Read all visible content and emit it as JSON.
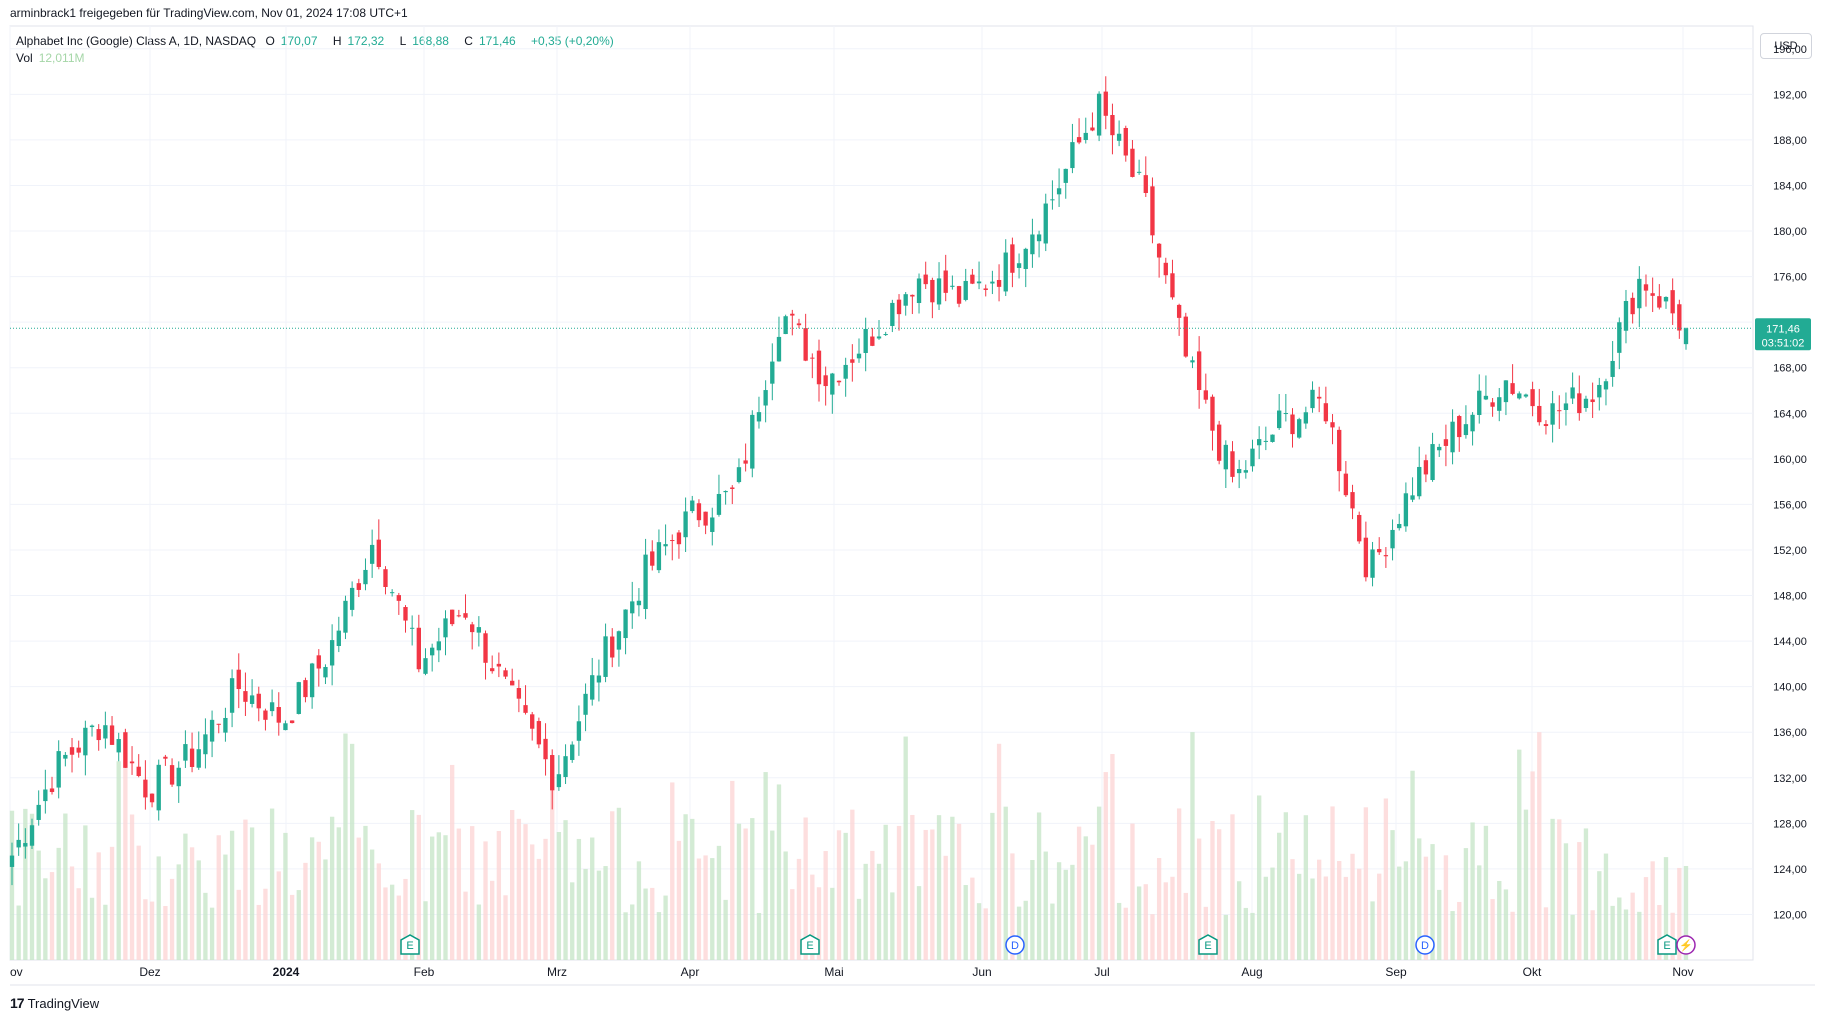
{
  "header": {
    "publisher_line": "arminbrack1 freigegeben für TradingView.com, Nov 01, 2024 17:08 UTC+1"
  },
  "legend": {
    "symbol": "Alphabet Inc (Google) Class A, 1D, NASDAQ",
    "o_label": "O",
    "o_value": "170,07",
    "h_label": "H",
    "h_value": "172,32",
    "l_label": "L",
    "l_value": "168,88",
    "c_label": "C",
    "c_value": "171,46",
    "change": "+0,35 (+0,20%)",
    "vol_label": "Vol",
    "vol_value": "12,011M"
  },
  "currency_button": "USD",
  "price_tag": {
    "price": "171,46",
    "countdown": "03:51:02"
  },
  "footer": {
    "brand": "TradingView"
  },
  "colors": {
    "up": "#22ab94",
    "down": "#f23645",
    "up_vol": "#c8e6c9",
    "down_vol": "#fcd6d6",
    "grid": "#f0f3fa",
    "axis_text": "#131722"
  },
  "chart_data": {
    "type": "candlestick",
    "ylim": [
      116,
      198
    ],
    "y_ticks": [
      "196,00",
      "192,00",
      "188,00",
      "184,00",
      "180,00",
      "176,00",
      "172,00",
      "168,00",
      "164,00",
      "160,00",
      "156,00",
      "152,00",
      "148,00",
      "144,00",
      "140,00",
      "136,00",
      "132,00",
      "128,00",
      "124,00",
      "120,00"
    ],
    "x_labels": [
      "ov",
      "Dez",
      "2024",
      "Feb",
      "Mrz",
      "Apr",
      "Mai",
      "Jun",
      "Jul",
      "Aug",
      "Sep",
      "Okt",
      "Nov"
    ],
    "last_close": 171.46,
    "anchors": [
      {
        "label": "Nov 2023",
        "close": 125.2
      },
      {
        "label": "Nov mid",
        "close": 133.0
      },
      {
        "label": "Nov end",
        "close": 137.0
      },
      {
        "label": "Dez early",
        "close": 131.0
      },
      {
        "label": "Dez mid",
        "close": 134.0
      },
      {
        "label": "Dez end",
        "close": 140.0
      },
      {
        "label": "Jan early",
        "close": 137.0
      },
      {
        "label": "Jan mid",
        "close": 143.0
      },
      {
        "label": "Jan end",
        "close": 153.0
      },
      {
        "label": "Feb early",
        "close": 142.0
      },
      {
        "label": "Feb mid",
        "close": 147.0
      },
      {
        "label": "Feb end",
        "close": 139.0
      },
      {
        "label": "Mrz early",
        "close": 132.0
      },
      {
        "label": "Mrz mid",
        "close": 142.0
      },
      {
        "label": "Mrz end",
        "close": 150.0
      },
      {
        "label": "Apr early",
        "close": 155.0
      },
      {
        "label": "Apr mid",
        "close": 157.0
      },
      {
        "label": "Apr end",
        "close": 173.0
      },
      {
        "label": "Mai early",
        "close": 167.0
      },
      {
        "label": "Mai mid",
        "close": 171.0
      },
      {
        "label": "Mai end",
        "close": 176.0
      },
      {
        "label": "Jun early",
        "close": 174.0
      },
      {
        "label": "Jun mid",
        "close": 177.0
      },
      {
        "label": "Jun end",
        "close": 183.0
      },
      {
        "label": "Jul early",
        "close": 191.0
      },
      {
        "label": "Jul mid",
        "close": 183.0
      },
      {
        "label": "Jul end",
        "close": 168.0
      },
      {
        "label": "Aug early",
        "close": 158.0
      },
      {
        "label": "Aug mid",
        "close": 163.0
      },
      {
        "label": "Aug end",
        "close": 165.0
      },
      {
        "label": "Sep early",
        "close": 150.0
      },
      {
        "label": "Sep mid",
        "close": 158.0
      },
      {
        "label": "Sep end",
        "close": 163.0
      },
      {
        "label": "Okt early",
        "close": 167.0
      },
      {
        "label": "Okt mid",
        "close": 164.0
      },
      {
        "label": "Okt end",
        "close": 166.0
      },
      {
        "label": "Okt 30",
        "close": 176.0
      },
      {
        "label": "Nov 01",
        "close": 171.46
      }
    ],
    "event_markers": [
      {
        "type": "E",
        "month": "Feb"
      },
      {
        "type": "E",
        "month": "Mai"
      },
      {
        "type": "D",
        "month": "Jun"
      },
      {
        "type": "E",
        "month": "Jul"
      },
      {
        "type": "D",
        "month": "Sep"
      },
      {
        "type": "E",
        "month": "Nov"
      },
      {
        "type": "⚡",
        "month": "Nov"
      }
    ]
  }
}
